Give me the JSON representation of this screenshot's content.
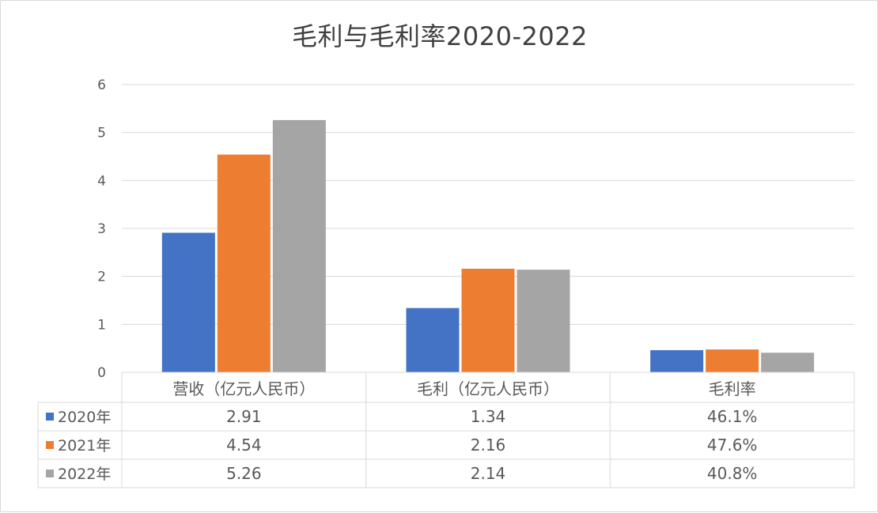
{
  "chart_data": {
    "type": "bar",
    "title": "毛利与毛利率2020-2022",
    "categories": [
      "营收（亿元人民币）",
      "毛利（亿元人民币）",
      "毛利率"
    ],
    "series": [
      {
        "name": "2020年",
        "color": "#4472C4",
        "values": [
          2.91,
          1.34,
          0.461
        ],
        "labels": [
          "2.91",
          "1.34",
          "46.1%"
        ]
      },
      {
        "name": "2021年",
        "color": "#ED7D31",
        "values": [
          4.54,
          2.16,
          0.476
        ],
        "labels": [
          "4.54",
          "2.16",
          "47.6%"
        ]
      },
      {
        "name": "2022年",
        "color": "#A5A5A5",
        "values": [
          5.26,
          2.14,
          0.408
        ],
        "labels": [
          "5.26",
          "2.14",
          "40.8%"
        ]
      }
    ],
    "ylim": [
      0,
      6
    ],
    "yticks": [
      "0",
      "1",
      "2",
      "3",
      "4",
      "5",
      "6"
    ],
    "grid": true,
    "legend": "data-table"
  }
}
